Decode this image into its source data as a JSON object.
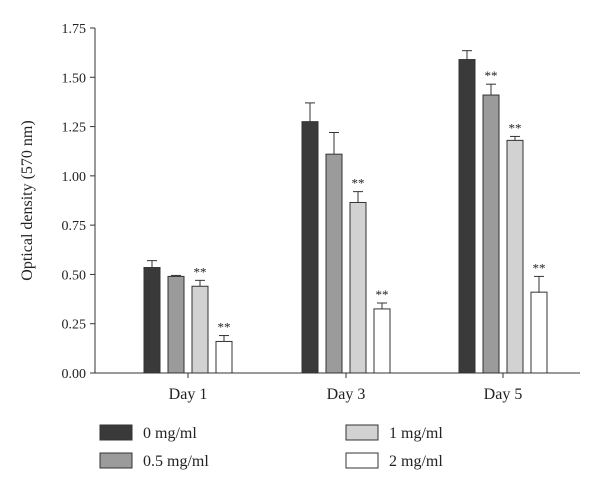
{
  "chart_data": {
    "type": "bar",
    "title": "",
    "xlabel": "",
    "ylabel": "Optical density (570 nm)",
    "ylim": [
      0,
      1.75
    ],
    "yticks": [
      "0.00",
      "0.25",
      "0.50",
      "0.75",
      "1.00",
      "1.25",
      "1.50",
      "1.75"
    ],
    "categories": [
      "Day 1",
      "Day 3",
      "Day 5"
    ],
    "series": [
      {
        "name": "0 mg/ml",
        "color": "#3a3a3a",
        "values": [
          0.535,
          1.275,
          1.59
        ],
        "errors": [
          0.035,
          0.095,
          0.045
        ],
        "significance": [
          "",
          "",
          ""
        ]
      },
      {
        "name": "0.5 mg/ml",
        "color": "#9b9b9b",
        "values": [
          0.49,
          1.11,
          1.41
        ],
        "errors": [
          0.005,
          0.11,
          0.055
        ],
        "significance": [
          "",
          "",
          "**"
        ]
      },
      {
        "name": "1 mg/ml",
        "color": "#d2d2d2",
        "values": [
          0.44,
          0.865,
          1.18
        ],
        "errors": [
          0.03,
          0.055,
          0.02
        ],
        "significance": [
          "**",
          "**",
          "**"
        ]
      },
      {
        "name": "2 mg/ml",
        "color": "#ffffff",
        "values": [
          0.16,
          0.325,
          0.41
        ],
        "errors": [
          0.03,
          0.03,
          0.08
        ],
        "significance": [
          "**",
          "**",
          "**"
        ]
      }
    ],
    "legend_position": "bottom"
  }
}
